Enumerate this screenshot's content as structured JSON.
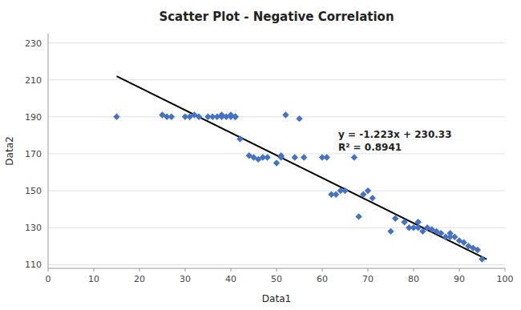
{
  "chart_data": {
    "type": "scatter",
    "title": "Scatter Plot - Negative Correlation",
    "xlabel": "Data1",
    "ylabel": "Data2",
    "xlim": [
      0,
      100
    ],
    "ylim": [
      108,
      235
    ],
    "xticks": [
      0,
      10,
      20,
      30,
      40,
      50,
      60,
      70,
      80,
      90,
      100
    ],
    "yticks": [
      110,
      130,
      150,
      170,
      190,
      210,
      230
    ],
    "grid": true,
    "annotations": [
      "y = -1.223x + 230.33",
      "R² = 0.8941"
    ],
    "series": [
      {
        "type": "scatter",
        "color": "#4472C4",
        "marker": "diamond",
        "x": [
          15,
          25,
          26,
          27,
          30,
          31,
          32,
          33,
          35,
          36,
          37,
          38,
          38,
          39,
          40,
          40,
          41,
          41,
          42,
          44,
          45,
          46,
          47,
          48,
          50,
          51,
          51,
          52,
          54,
          55,
          56,
          60,
          61,
          62,
          63,
          64,
          65,
          67,
          68,
          69,
          70,
          71,
          75,
          76,
          78,
          79,
          80,
          81,
          81,
          82,
          83,
          84,
          85,
          86,
          87,
          88,
          88,
          89,
          90,
          91,
          92,
          93,
          94,
          95
        ],
        "values": [
          190,
          191,
          190,
          190,
          190,
          190,
          191,
          190,
          190,
          190,
          190,
          191,
          190,
          190,
          190,
          191,
          190,
          190,
          178,
          169,
          168,
          167,
          168,
          168,
          165,
          168,
          169,
          191,
          168,
          189,
          168,
          168,
          168,
          148,
          148,
          150,
          150,
          168,
          136,
          148,
          150,
          146,
          128,
          135,
          133,
          130,
          130,
          133,
          130,
          128,
          130,
          129,
          128,
          127,
          125,
          127,
          125,
          125,
          123,
          122,
          120,
          119,
          118,
          113
        ]
      },
      {
        "type": "line",
        "color": "#000000",
        "line_style": "solid",
        "x": [
          15,
          96
        ],
        "values": [
          211.985,
          112.922
        ]
      }
    ]
  }
}
